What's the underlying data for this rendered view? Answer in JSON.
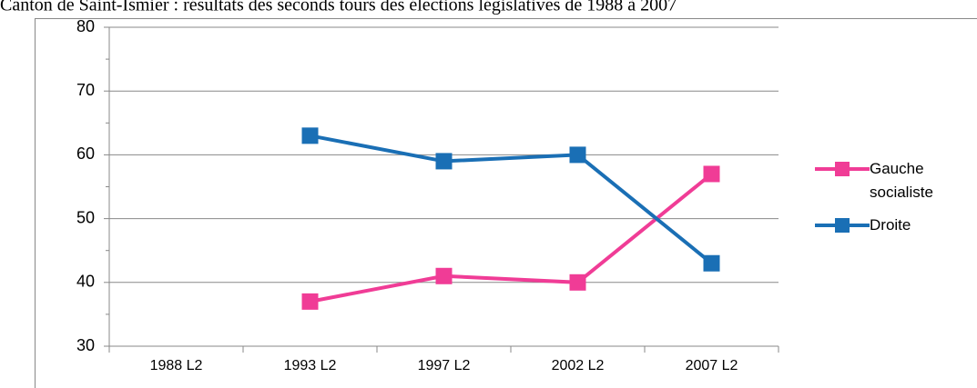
{
  "chart_data": {
    "type": "line",
    "title": "Canton de Saint-Ismier : résultats des seconds tours des élections législatives de 1988 à 2007",
    "categories": [
      "1988 L2",
      "1993 L2",
      "1997 L2",
      "2002 L2",
      "2007 L2"
    ],
    "series": [
      {
        "name": "Gauche socialiste",
        "color": "#f03c96",
        "values": [
          null,
          37,
          41,
          40,
          57
        ]
      },
      {
        "name": "Droite",
        "color": "#1a6fb5",
        "values": [
          null,
          63,
          59,
          60,
          43
        ]
      }
    ],
    "ylim": [
      30,
      80
    ],
    "yticks": [
      30,
      40,
      50,
      60,
      70,
      80
    ],
    "grid": true,
    "legend": "right"
  }
}
